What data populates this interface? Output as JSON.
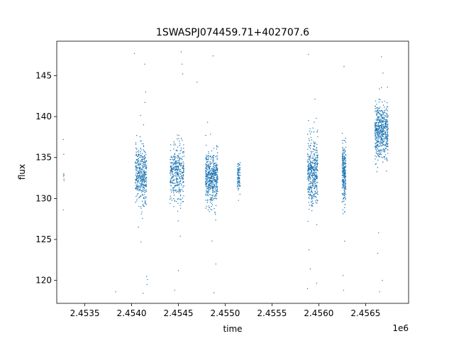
{
  "chart_data": {
    "type": "scatter",
    "title": "1SWASPJ074459.71+402707.6",
    "xlabel": "time",
    "ylabel": "flux",
    "x_offset_label": "1e6",
    "xlim": [
      2453200,
      2456960
    ],
    "ylim": [
      117.2,
      149.2
    ],
    "x_ticks": [
      2453500,
      2454000,
      2454500,
      2455000,
      2455500,
      2456000,
      2456500
    ],
    "x_tick_labels": [
      "2.4535",
      "2.4540",
      "2.4545",
      "2.4550",
      "2.4555",
      "2.4560",
      "2.4565"
    ],
    "y_ticks": [
      120,
      125,
      130,
      135,
      140,
      145
    ],
    "y_tick_labels": [
      "120",
      "125",
      "130",
      "135",
      "140",
      "145"
    ],
    "grid": false,
    "legend": "none",
    "marker_color": "#1f77b4",
    "observing_seasons": [
      {
        "x_range": [
          2453270,
          2453280
        ],
        "center": 132.8,
        "spread": 0.4,
        "points": 6
      },
      {
        "x_range": [
          2454040,
          2454160
        ],
        "center": 132.9,
        "spread": 1.6,
        "points": 420
      },
      {
        "x_range": [
          2454410,
          2454560
        ],
        "center": 133.0,
        "spread": 1.7,
        "points": 380
      },
      {
        "x_range": [
          2454790,
          2454920
        ],
        "center": 132.5,
        "spread": 1.6,
        "points": 500
      },
      {
        "x_range": [
          2455130,
          2455160
        ],
        "center": 132.6,
        "spread": 0.9,
        "points": 90
      },
      {
        "x_range": [
          2455880,
          2455990
        ],
        "center": 133.1,
        "spread": 2.0,
        "points": 450
      },
      {
        "x_range": [
          2456250,
          2456290
        ],
        "center": 132.9,
        "spread": 1.7,
        "points": 260
      },
      {
        "x_range": [
          2456600,
          2456740
        ],
        "center": 138.3,
        "spread": 1.6,
        "points": 550
      }
    ],
    "notable_points": [
      {
        "x": 2453270,
        "y": 137.2
      },
      {
        "x": 2453275,
        "y": 135.4
      },
      {
        "x": 2453270,
        "y": 128.6
      },
      {
        "x": 2453830,
        "y": 118.6
      },
      {
        "x": 2454030,
        "y": 147.7
      },
      {
        "x": 2454140,
        "y": 146.4
      },
      {
        "x": 2454150,
        "y": 143.0
      },
      {
        "x": 2454100,
        "y": 124.7
      },
      {
        "x": 2454160,
        "y": 120.5
      },
      {
        "x": 2454165,
        "y": 119.5
      },
      {
        "x": 2454170,
        "y": 120.1
      },
      {
        "x": 2454530,
        "y": 147.9
      },
      {
        "x": 2454540,
        "y": 146.4
      },
      {
        "x": 2454545,
        "y": 145.2
      },
      {
        "x": 2454520,
        "y": 125.4
      },
      {
        "x": 2454500,
        "y": 121.2
      },
      {
        "x": 2454460,
        "y": 118.8
      },
      {
        "x": 2454700,
        "y": 144.2
      },
      {
        "x": 2454870,
        "y": 147.4
      },
      {
        "x": 2454880,
        "y": 118.5
      },
      {
        "x": 2454900,
        "y": 122.0
      },
      {
        "x": 2454860,
        "y": 124.8
      },
      {
        "x": 2455890,
        "y": 147.6
      },
      {
        "x": 2455880,
        "y": 119.0
      },
      {
        "x": 2455910,
        "y": 121.4
      },
      {
        "x": 2456270,
        "y": 146.1
      },
      {
        "x": 2456265,
        "y": 118.8
      },
      {
        "x": 2456260,
        "y": 120.6
      },
      {
        "x": 2456670,
        "y": 147.3
      },
      {
        "x": 2456640,
        "y": 125.8
      },
      {
        "x": 2456650,
        "y": 118.6
      },
      {
        "x": 2456680,
        "y": 120.0
      },
      {
        "x": 2456630,
        "y": 123.3
      }
    ]
  }
}
